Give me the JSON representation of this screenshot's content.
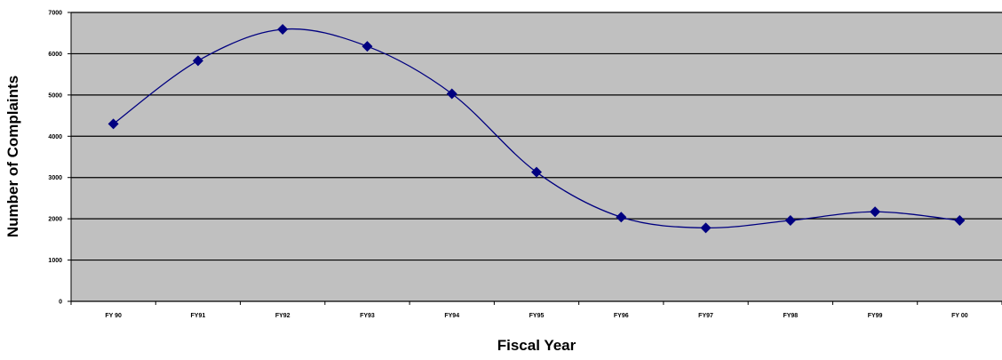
{
  "chart_data": {
    "type": "line",
    "title": "",
    "xlabel": "Fiscal Year",
    "ylabel": "Number of Complaints",
    "categories": [
      "FY 90",
      "FY91",
      "FY92",
      "FY93",
      "FY94",
      "FY95",
      "FY96",
      "FY97",
      "FY98",
      "FY99",
      "FY 00"
    ],
    "series": [
      {
        "values": [
          4300,
          5830,
          6590,
          6180,
          5030,
          3130,
          2040,
          1780,
          1960,
          2170,
          1960
        ]
      }
    ],
    "ylim": [
      0,
      7000
    ],
    "yticks": [
      "0",
      "1000",
      "2000",
      "3000",
      "4000",
      "5000",
      "6000",
      "7000"
    ],
    "grid": true,
    "legend": "none",
    "colors": {
      "plot_background": "#c0c0c0",
      "series": "#000080",
      "gridline": "#000000"
    }
  }
}
